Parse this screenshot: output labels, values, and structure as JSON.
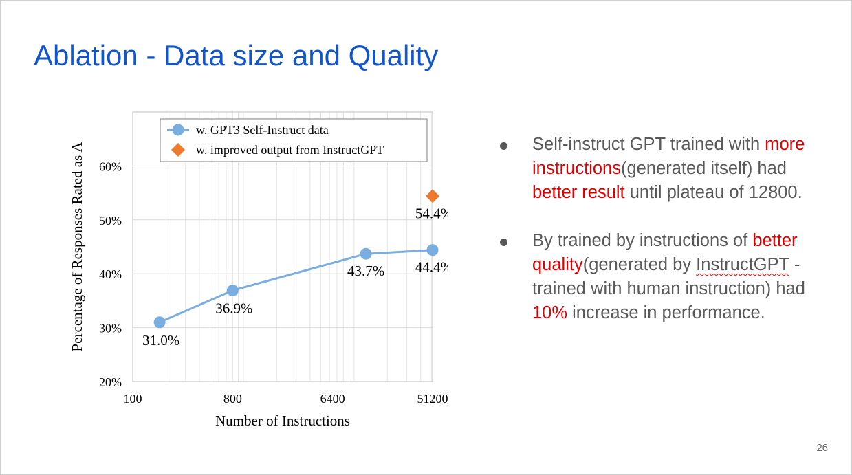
{
  "slide": {
    "title": "Ablation - Data size and Quality",
    "page_number": "26"
  },
  "bullets": [
    {
      "segments": [
        {
          "text": "Self-instruct GPT trained with ",
          "style": "plain"
        },
        {
          "text": "more instructions",
          "style": "red"
        },
        {
          "text": "(generated itself) had ",
          "style": "plain"
        },
        {
          "text": "better result",
          "style": "red"
        },
        {
          "text": " until plateau of 12800.",
          "style": "plain"
        }
      ]
    },
    {
      "segments": [
        {
          "text": "By trained by instructions of ",
          "style": "plain"
        },
        {
          "text": "better quality",
          "style": "red"
        },
        {
          "text": "(generated by ",
          "style": "plain"
        },
        {
          "text": "InstructGPT",
          "style": "squiggle"
        },
        {
          "text": " - trained with human instruction) had ",
          "style": "plain"
        },
        {
          "text": "10%",
          "style": "red"
        },
        {
          "text": " increase in performance.",
          "style": "plain"
        }
      ]
    }
  ],
  "colors": {
    "title": "#1155cc",
    "text": "#595959",
    "highlight": "#e00000",
    "series_blue": "#7aaee0",
    "series_orange": "#ee7a2e"
  },
  "chart_data": {
    "type": "line",
    "xlabel": "Number of Instructions",
    "ylabel": "Percentage of Responses Rated as A",
    "x_scale": "log2",
    "xlim": [
      100,
      51200
    ],
    "ylim": [
      20,
      70
    ],
    "x_ticks": [
      {
        "value": 100,
        "label": "100"
      },
      {
        "value": 800,
        "label": "800"
      },
      {
        "value": 6400,
        "label": "6400"
      },
      {
        "value": 51200,
        "label": "51200"
      }
    ],
    "y_ticks": [
      {
        "value": 20,
        "label": "20%"
      },
      {
        "value": 30,
        "label": "30%"
      },
      {
        "value": 40,
        "label": "40%"
      },
      {
        "value": 50,
        "label": "50%"
      },
      {
        "value": 60,
        "label": "60%"
      }
    ],
    "grid": true,
    "legend": "top",
    "series": [
      {
        "name": "w. GPT3 Self-Instruct data",
        "marker": "circle",
        "color": "#7aaee0",
        "points": [
          {
            "x": 175,
            "y": 31.0,
            "label": "31.0%"
          },
          {
            "x": 800,
            "y": 36.9,
            "label": "36.9%"
          },
          {
            "x": 12800,
            "y": 43.7,
            "label": "43.7%"
          },
          {
            "x": 51200,
            "y": 44.4,
            "label": "44.4%"
          }
        ]
      },
      {
        "name": "w. improved output from InstructGPT",
        "marker": "diamond",
        "color": "#ee7a2e",
        "points": [
          {
            "x": 51200,
            "y": 54.4,
            "label": "54.4%"
          }
        ]
      }
    ]
  }
}
